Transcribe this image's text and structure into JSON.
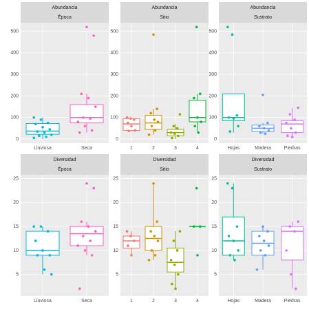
{
  "chart_data": [
    {
      "type": "box",
      "title": "Abundancia",
      "subtitle": "Época",
      "categories": [
        "Lluviosa",
        "Seca"
      ],
      "colors": [
        "#00B9E3",
        "#FF61C3"
      ],
      "boxes": [
        {
          "low": 0,
          "q1": 22,
          "median": 37,
          "q3": 72,
          "high": 100
        },
        {
          "low": 30,
          "q1": 75,
          "median": 100,
          "q3": 160,
          "high": 210
        }
      ],
      "points": [
        [
          100,
          90,
          75,
          70,
          55,
          45,
          35,
          30,
          20,
          15,
          10,
          5
        ],
        [
          520,
          480,
          210,
          190,
          150,
          100,
          95,
          80,
          60,
          40,
          30
        ]
      ],
      "ylim": [
        -19,
        540
      ],
      "yticks": [
        0,
        100,
        200,
        300,
        400,
        500
      ],
      "grid": true
    },
    {
      "type": "box",
      "title": "Abundancia",
      "subtitle": "Sitio",
      "categories": [
        "1",
        "2",
        "3",
        "4"
      ],
      "colors": [
        "#F8766D",
        "#D39200",
        "#93AA00",
        "#00BA38"
      ],
      "boxes": [
        {
          "low": 35,
          "q1": 40,
          "median": 70,
          "q3": 95,
          "high": 100
        },
        {
          "low": 20,
          "q1": 45,
          "median": 75,
          "q3": 110,
          "high": 140
        },
        {
          "low": 0,
          "q1": 15,
          "median": 30,
          "q3": 45,
          "high": 70
        },
        {
          "low": 30,
          "q1": 80,
          "median": 100,
          "q3": 180,
          "high": 210
        }
      ],
      "points": [
        [
          100,
          95,
          90,
          75,
          60,
          40,
          38
        ],
        [
          485,
          140,
          120,
          90,
          80,
          60,
          40,
          20
        ],
        [
          115,
          60,
          50,
          30,
          25,
          15,
          5
        ],
        [
          520,
          210,
          190,
          100,
          80,
          60,
          30
        ]
      ],
      "ylim": [
        -19,
        540
      ],
      "yticks": [
        0,
        100,
        200,
        300,
        400,
        500
      ],
      "grid": true
    },
    {
      "type": "box",
      "title": "Abundancia",
      "subtitle": "Sustrato",
      "categories": [
        "Hojas",
        "Madera",
        "Piedras"
      ],
      "colors": [
        "#00C19F",
        "#619CFF",
        "#DB72FB"
      ],
      "boxes": [
        {
          "low": 30,
          "q1": 85,
          "median": 100,
          "q3": 210,
          "high": 210
        },
        {
          "low": 25,
          "q1": 35,
          "median": 50,
          "q3": 65,
          "high": 75
        },
        {
          "low": 10,
          "q1": 30,
          "median": 70,
          "q3": 85,
          "high": 145
        }
      ],
      "points": [
        [
          520,
          485,
          110,
          100,
          95,
          60,
          35
        ],
        [
          205,
          75,
          60,
          50,
          40,
          30,
          25
        ],
        [
          145,
          115,
          90,
          75,
          50,
          30,
          15,
          10
        ]
      ],
      "ylim": [
        -19,
        540
      ],
      "yticks": [
        0,
        100,
        200,
        300,
        400,
        500
      ],
      "grid": true
    },
    {
      "type": "box",
      "title": "Diversidad",
      "subtitle": "Época",
      "categories": [
        "Lluviosa",
        "Seca"
      ],
      "colors": [
        "#00B9E3",
        "#FF61C3"
      ],
      "boxes": [
        {
          "low": 5,
          "q1": 9,
          "median": 10,
          "q3": 14,
          "high": 15
        },
        {
          "low": 9,
          "q1": 11,
          "median": 13.5,
          "q3": 15,
          "high": 16
        }
      ],
      "points": [
        [
          15,
          15,
          14,
          12,
          10,
          9,
          9,
          6,
          5
        ],
        [
          24,
          23,
          16,
          15,
          14,
          13,
          12,
          11,
          10,
          9,
          2
        ]
      ],
      "ylim": [
        0.5,
        25.8
      ],
      "yticks": [
        5,
        10,
        15,
        20,
        25
      ],
      "grid": true
    },
    {
      "type": "box",
      "title": "Diversidad",
      "subtitle": "Sitio",
      "categories": [
        "1",
        "2",
        "3",
        "4"
      ],
      "colors": [
        "#F8766D",
        "#D39200",
        "#93AA00",
        "#00BA38"
      ],
      "boxes": [
        {
          "low": 9,
          "q1": 10.5,
          "median": 12,
          "q3": 13,
          "high": 14
        },
        {
          "low": 8,
          "q1": 10,
          "median": 12.5,
          "q3": 15,
          "high": 24
        },
        {
          "low": 2,
          "q1": 5.5,
          "median": 7.5,
          "q3": 10.5,
          "high": 14
        },
        {
          "low": 15,
          "q1": 15,
          "median": 15,
          "q3": 15,
          "high": 15
        }
      ],
      "points": [
        [
          14,
          13,
          12,
          11,
          9
        ],
        [
          24,
          16,
          14,
          13,
          12,
          10,
          9,
          8
        ],
        [
          14,
          12,
          10,
          8,
          7,
          5,
          3,
          2
        ],
        [
          23,
          15,
          15,
          9
        ]
      ],
      "ylim": [
        0.5,
        25.8
      ],
      "yticks": [
        5,
        10,
        15,
        20,
        25
      ],
      "grid": true
    },
    {
      "type": "box",
      "title": "Diversidad",
      "subtitle": "Sustrato",
      "categories": [
        "Hojas",
        "Madera",
        "Piedras"
      ],
      "colors": [
        "#00C19F",
        "#619CFF",
        "#DB72FB"
      ],
      "boxes": [
        {
          "low": 8,
          "q1": 9,
          "median": 12,
          "q3": 17,
          "high": 24
        },
        {
          "low": 6,
          "q1": 9,
          "median": 11.5,
          "q3": 14,
          "high": 15
        },
        {
          "low": 2,
          "q1": 8,
          "median": 14,
          "q3": 15,
          "high": 16
        }
      ],
      "points": [
        [
          24,
          23,
          15,
          13,
          12,
          10,
          9,
          8
        ],
        [
          15,
          14,
          13,
          12,
          11,
          10,
          9,
          6
        ],
        [
          16,
          15,
          14,
          10,
          5,
          2
        ]
      ],
      "ylim": [
        0.5,
        25.8
      ],
      "yticks": [
        5,
        10,
        15,
        20,
        25
      ],
      "grid": true
    }
  ]
}
